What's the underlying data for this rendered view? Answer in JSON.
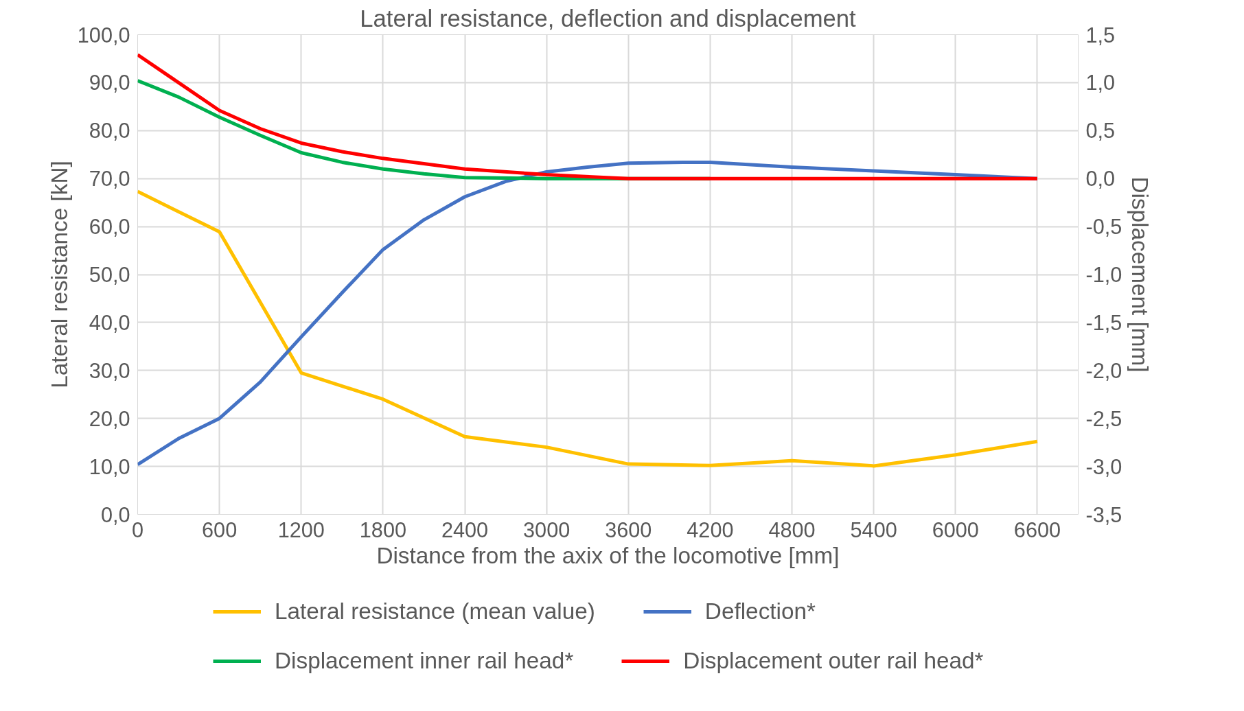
{
  "chart_data": {
    "type": "line",
    "title": "Lateral resistance, deflection and displacement",
    "xlabel": "Distance from the axix of the locomotive [mm]",
    "ylabel": "Lateral resistance [kN]",
    "y2label": "Displacement [mm]",
    "xlim": [
      0,
      6900
    ],
    "xticks": [
      0,
      600,
      1200,
      1800,
      2400,
      3000,
      3600,
      4200,
      4800,
      5400,
      6000,
      6600
    ],
    "ylim": [
      0,
      100
    ],
    "yticks": [
      {
        "value": 0,
        "label": "0,0"
      },
      {
        "value": 10,
        "label": "10,0"
      },
      {
        "value": 20,
        "label": "20,0"
      },
      {
        "value": 30,
        "label": "30,0"
      },
      {
        "value": 40,
        "label": "40,0"
      },
      {
        "value": 50,
        "label": "50,0"
      },
      {
        "value": 60,
        "label": "60,0"
      },
      {
        "value": 70,
        "label": "70,0"
      },
      {
        "value": 80,
        "label": "80,0"
      },
      {
        "value": 90,
        "label": "90,0"
      },
      {
        "value": 100,
        "label": "100,0"
      }
    ],
    "y2lim": [
      -3.5,
      1.5
    ],
    "y2ticks": [
      {
        "value": -3.5,
        "label": "-3,5"
      },
      {
        "value": -3,
        "label": "-3,0"
      },
      {
        "value": -2.5,
        "label": "-2,5"
      },
      {
        "value": -2,
        "label": "-2,0"
      },
      {
        "value": -1.5,
        "label": "-1,5"
      },
      {
        "value": -1,
        "label": "-1,0"
      },
      {
        "value": -0.5,
        "label": "-0,5"
      },
      {
        "value": 0,
        "label": "0,0"
      },
      {
        "value": 0.5,
        "label": "0,5"
      },
      {
        "value": 1,
        "label": "1,0"
      },
      {
        "value": 1.5,
        "label": "1,5"
      }
    ],
    "grid": true,
    "legend": "bottom",
    "marker": "none",
    "line_style": "solid",
    "series": [
      {
        "name": "Lateral resistance (mean value)",
        "color": "#ffc000",
        "x": [
          0,
          600,
          1200,
          1800,
          2400,
          3000,
          3600,
          4200,
          4800,
          5400,
          6000,
          6600
        ],
        "values": [
          67.3,
          58.9,
          29.5,
          24,
          16.2,
          14,
          10.5,
          10.2,
          11.2,
          10.1,
          12.4,
          15.2
        ]
      },
      {
        "name": "Deflection*",
        "color": "#4472c4",
        "axis": "y2",
        "x": [
          0,
          300,
          600,
          900,
          1200,
          1500,
          1800,
          2100,
          2400,
          2700,
          3000,
          3300,
          3600,
          4000,
          4200,
          4800,
          5400,
          6000,
          6600
        ],
        "values": [
          -2.98,
          -2.71,
          -2.5,
          -2.12,
          -1.65,
          -1.19,
          -0.74,
          -0.43,
          -0.19,
          -0.03,
          0.07,
          0.12,
          0.16,
          0.17,
          0.17,
          0.12,
          0.08,
          0.04,
          0
        ]
      },
      {
        "name": "Displacement inner rail head*",
        "color": "#00b050",
        "axis": "y2",
        "x": [
          0,
          300,
          600,
          900,
          1200,
          1500,
          1800,
          2100,
          2400,
          3000,
          3600,
          4200
        ],
        "values": [
          1.02,
          0.85,
          0.64,
          0.45,
          0.27,
          0.17,
          0.1,
          0.05,
          0.01,
          0,
          0,
          0
        ]
      },
      {
        "name": "Displacement outer rail head*",
        "color": "#ff0000",
        "axis": "y2",
        "x": [
          0,
          300,
          600,
          900,
          1200,
          1500,
          1800,
          2400,
          3000,
          3600,
          4200,
          4800,
          5400,
          6000,
          6600
        ],
        "values": [
          1.29,
          1.0,
          0.71,
          0.52,
          0.37,
          0.28,
          0.21,
          0.1,
          0.04,
          0,
          0,
          0,
          0,
          0,
          0
        ]
      }
    ]
  }
}
